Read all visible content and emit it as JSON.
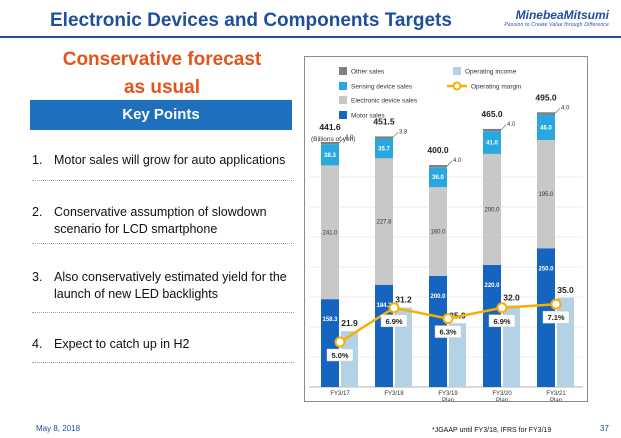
{
  "header": {
    "title": "Electronic Devices and Components Targets",
    "logo_name": "MinebeaMitsumi",
    "logo_tagline": "Passion to Create Value through Difference"
  },
  "left": {
    "forecast_line1": "Conservative forecast",
    "forecast_line2": "as usual",
    "key_points_heading": "Key Points",
    "points": [
      {
        "num": "1.",
        "text": "Motor sales will grow for auto applications"
      },
      {
        "num": "2.",
        "text": "Conservative assumption of slowdown scenario for LCD smartphone"
      },
      {
        "num": "3.",
        "text": "Also conservatively estimated yield for the launch of new LED backlights"
      },
      {
        "num": "4.",
        "text": "Expect to catch up in H2"
      }
    ]
  },
  "footer": {
    "date": "May 8, 2018",
    "note": "*JGAAP until FY3/18, IFRS for FY3/19",
    "page": "37"
  },
  "colors": {
    "title_blue": "#1f4e9c",
    "forecast_orange": "#e2541b",
    "motor": "#1565c0",
    "electronic": "#c8c8c8",
    "sensing": "#29a8e0",
    "other": "#7f7f7f",
    "operating_income": "#b4d2e6",
    "margin_line": "#f5b000"
  },
  "chart_data": {
    "type": "bar",
    "unit_label": "(Billions of yen)",
    "categories": [
      "FY3/17",
      "FY3/18",
      "FY3/19\nPlan",
      "FY3/20\nPlan",
      "FY3/21\nPlan"
    ],
    "totals": [
      "441.6",
      "451.5",
      "400.0",
      "465.0",
      "495.0"
    ],
    "stacked_series": [
      {
        "name": "Motor sales",
        "values": [
          158.3,
          184.2,
          200.0,
          220.0,
          250.0
        ],
        "labels": [
          "158.3",
          "184.2",
          "200.0",
          "220.0",
          "250.0"
        ]
      },
      {
        "name": "Electronic device sales",
        "values": [
          241.0,
          227.8,
          160.0,
          200.0,
          195.0
        ],
        "labels": [
          "241.0",
          "227.8",
          "160.0",
          "200.0",
          "195.0"
        ]
      },
      {
        "name": "Sensing device sales",
        "values": [
          38.3,
          35.7,
          36.0,
          41.0,
          46.0
        ],
        "labels": [
          "38.3",
          "35.7",
          "36.0",
          "41.0",
          "46.0"
        ]
      },
      {
        "name": "Other sales",
        "values": [
          4.0,
          3.8,
          4.0,
          4.0,
          4.0
        ],
        "labels": [
          "4.0",
          "3.8",
          "4.0",
          "4.0",
          "4.0"
        ]
      }
    ],
    "operating_income": {
      "name": "Operating income",
      "values": [
        21.9,
        31.2,
        25.0,
        32.0,
        35.0
      ],
      "labels": [
        "21.9",
        "31.2",
        "25.0",
        "32.0",
        "35.0"
      ]
    },
    "operating_margin": {
      "name": "Operating margin",
      "values": [
        5.0,
        6.9,
        6.3,
        6.9,
        7.1
      ],
      "labels": [
        "5.0%",
        "6.9%",
        "6.3%",
        "6.9%",
        "7.1%"
      ]
    },
    "legend": [
      {
        "name": "Other sales",
        "key": "other"
      },
      {
        "name": "Operating income",
        "key": "opincome"
      },
      {
        "name": "Sensing device sales",
        "key": "sensing"
      },
      {
        "name": "Operating margin",
        "key": "margin"
      },
      {
        "name": "Electronic device sales",
        "key": "electronic"
      },
      {
        "name": "Motor sales",
        "key": "motor"
      }
    ],
    "legend_position": "top",
    "grid": true
  }
}
